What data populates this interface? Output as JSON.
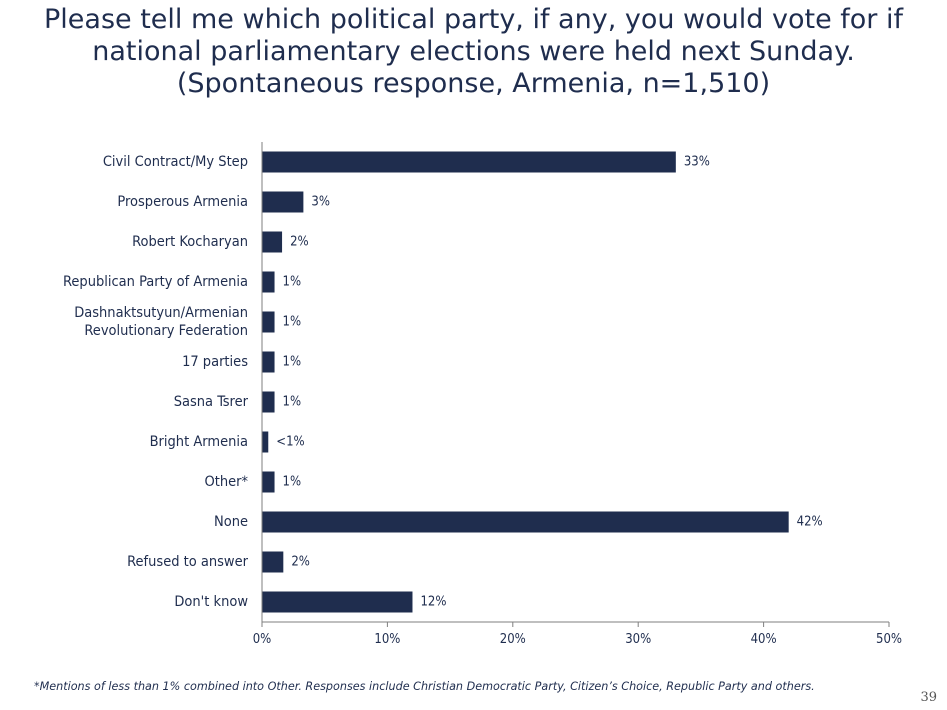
{
  "slide": {
    "title_lines": [
      "Please tell me which political party, if any, you would vote for if",
      "national parliamentary elections were held next Sunday.",
      "(Spontaneous response, Armenia, n=1,510)"
    ],
    "footnote": "*Mentions of less than 1% combined into Other. Responses include Christian Democratic Party, Citizen’s Choice, Republic Party and others.",
    "page_number": "39"
  },
  "colors": {
    "bar": "#1f2d4e",
    "axis": "#7f7f7f",
    "text": "#1f2d4e"
  },
  "chart_data": {
    "type": "bar",
    "orientation": "horizontal",
    "categories": [
      [
        "Civil Contract/My Step"
      ],
      [
        "Prosperous Armenia"
      ],
      [
        "Robert Kocharyan"
      ],
      [
        "Republican Party of Armenia"
      ],
      [
        "Dashnaktsutyun/Armenian",
        "Revolutionary Federation"
      ],
      [
        "17 parties"
      ],
      [
        "Sasna Tsrer"
      ],
      [
        "Bright Armenia"
      ],
      [
        "Other*"
      ],
      [
        "None"
      ],
      [
        "Refused to answer"
      ],
      [
        "Don't know"
      ]
    ],
    "values": [
      33,
      3.3,
      1.6,
      1,
      1,
      1,
      1,
      0.5,
      1,
      42,
      1.7,
      12
    ],
    "data_labels": [
      "33%",
      "3%",
      "2%",
      "1%",
      "1%",
      "1%",
      "1%",
      "<1%",
      "1%",
      "42%",
      "2%",
      "12%"
    ],
    "xlim": [
      0,
      50
    ],
    "xticks": [
      0,
      10,
      20,
      30,
      40,
      50
    ],
    "xtick_labels": [
      "0%",
      "10%",
      "20%",
      "30%",
      "40%",
      "50%"
    ],
    "grid": false,
    "legend": "none"
  }
}
